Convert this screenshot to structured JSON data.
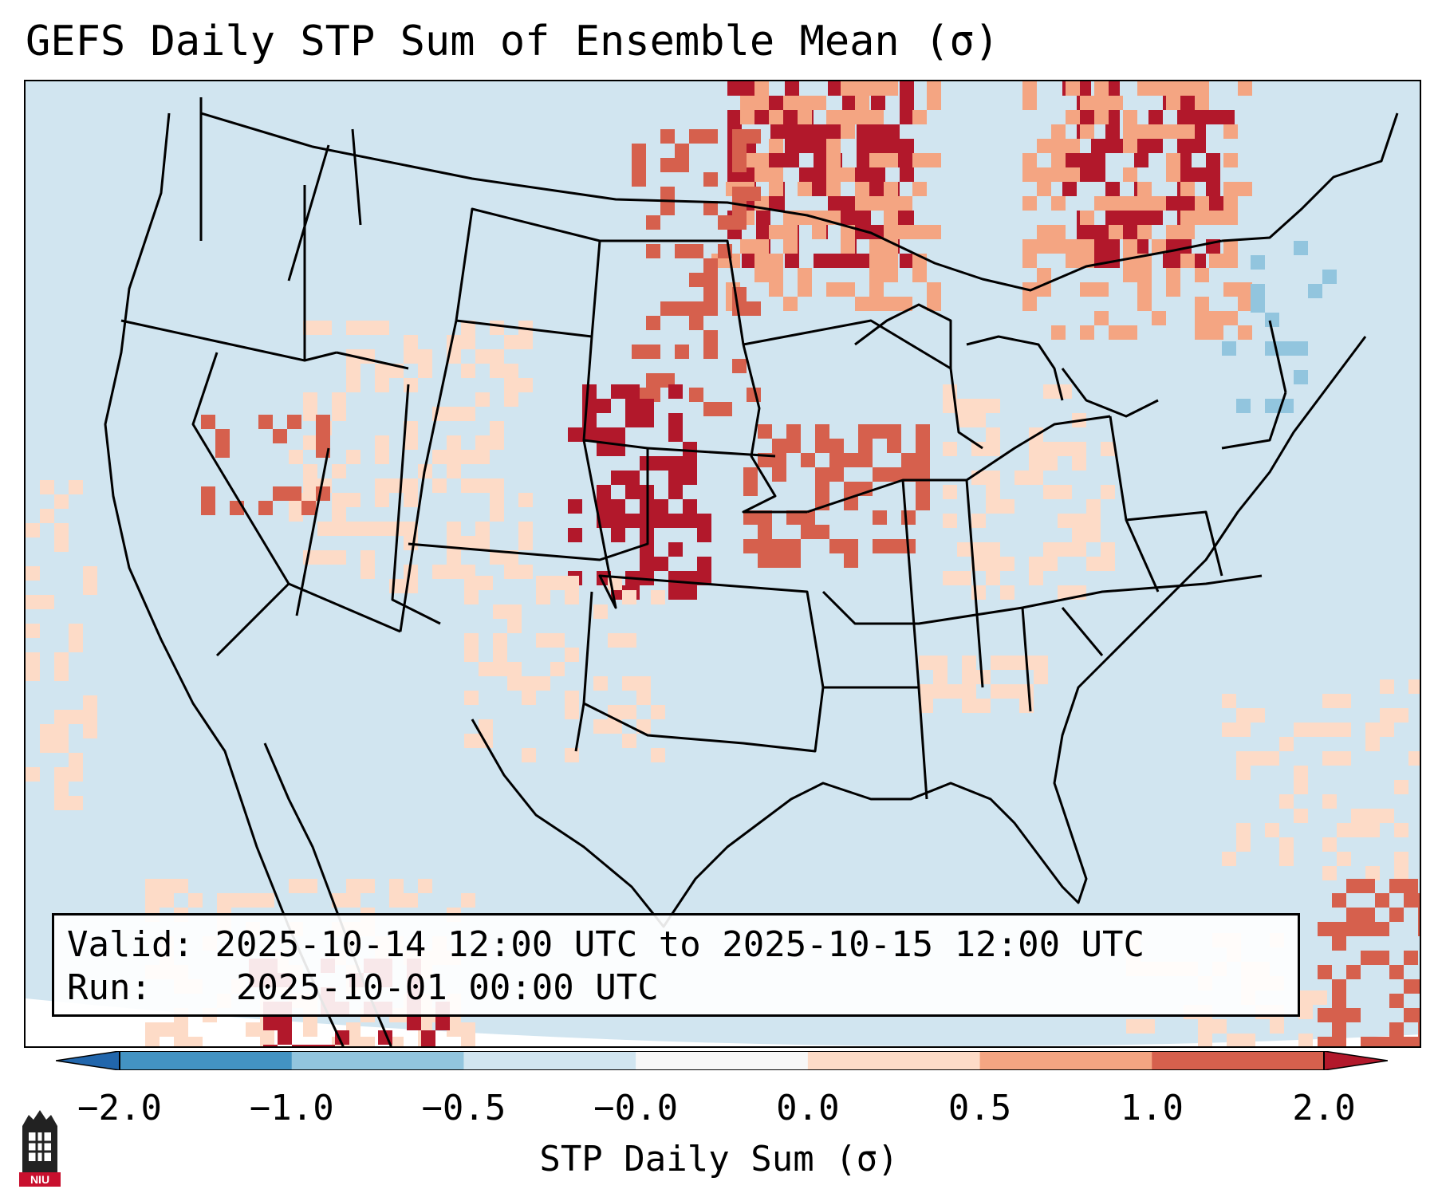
{
  "title": "GEFS Daily STP Sum of Ensemble Mean (σ)",
  "info": {
    "valid_label": "Valid:",
    "valid_value": "2025-10-14 12:00 UTC to 2025-10-15 12:00 UTC",
    "run_label": "Run:",
    "run_value": "2025-10-01 00:00 UTC"
  },
  "colorbar": {
    "label": "STP Daily Sum (σ)",
    "ticks": [
      "−2.0",
      "−1.0",
      "−0.5",
      "−0.0",
      "0.0",
      "0.5",
      "1.0",
      "2.0"
    ],
    "colors": [
      "#4393c3",
      "#92c5de",
      "#d1e5f0",
      "#f7f7f7",
      "#fddbc7",
      "#f4a582",
      "#d6604d"
    ],
    "extend_low_color": "#2166ac",
    "extend_high_color": "#b2182b"
  },
  "map_colors": {
    "background": "#d1e5f0",
    "light_positive": "#fddbc7",
    "medium_positive": "#f4a582",
    "strong_positive": "#d6604d",
    "extreme_positive": "#b2182b",
    "light_negative": "#92c5de",
    "medium_negative": "#4393c3",
    "boundary": "#000000"
  },
  "logo": {
    "text": "NIU",
    "icon": "niu-tower-logo"
  }
}
